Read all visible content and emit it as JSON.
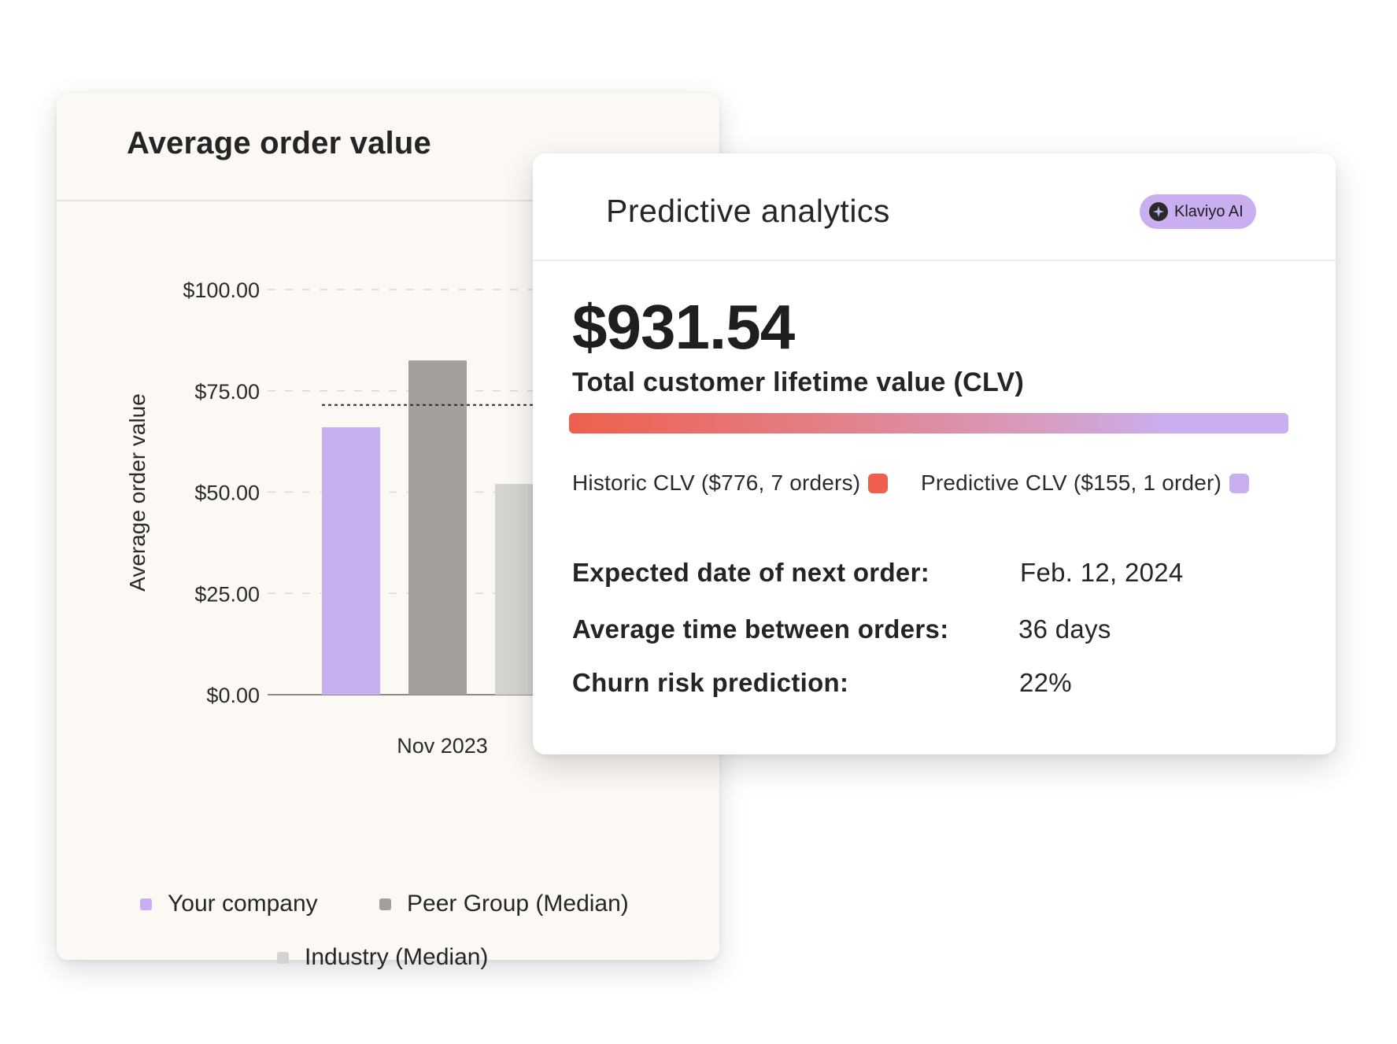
{
  "aov_card": {
    "title": "Average order value",
    "legend": [
      {
        "label": "Your company",
        "color": "#c8b0f0"
      },
      {
        "label": "Peer Group (Median)",
        "color": "#a3a09c"
      },
      {
        "label": "Industry (Median)",
        "color": "#d5d3cf"
      }
    ]
  },
  "chart_data": {
    "type": "bar",
    "categories": [
      "Nov 2023"
    ],
    "series": [
      {
        "name": "Your company",
        "values": [
          66
        ],
        "color": "#c8b0f0"
      },
      {
        "name": "Peer Group (Median)",
        "values": [
          82.5
        ],
        "color": "#a3a09c"
      },
      {
        "name": "Industry (Median)",
        "values": [
          52
        ],
        "color": "#d5d3cf"
      }
    ],
    "reference_line": 71.5,
    "ylabel": "Average order value",
    "xlabel": "",
    "ylim": [
      0,
      100
    ],
    "yticks": [
      0,
      25,
      50,
      75,
      100
    ],
    "ytick_labels": [
      "$0.00",
      "$25.00",
      "$50.00",
      "$75.00",
      "$100.00"
    ],
    "grid": true,
    "legend_position": "bottom"
  },
  "pa_card": {
    "title": "Predictive analytics",
    "badge": {
      "label": "Klaviyo AI",
      "icon": "sparkle-icon"
    },
    "clv_value": "$931.54",
    "clv_label": "Total customer lifetime value (CLV)",
    "historic_clv": 776,
    "predictive_clv": 155,
    "historic_label": "Historic CLV ($776, 7 orders)",
    "predictive_label": "Predictive CLV ($155, 1 order)",
    "historic_color": "#ee5f4d",
    "predictive_color": "#c9aff0",
    "stats": [
      {
        "label": "Expected date of next order:",
        "value": "Feb. 12, 2024"
      },
      {
        "label": "Average time between orders:",
        "value": "36 days"
      },
      {
        "label": "Churn risk prediction:",
        "value": "22%"
      }
    ]
  }
}
